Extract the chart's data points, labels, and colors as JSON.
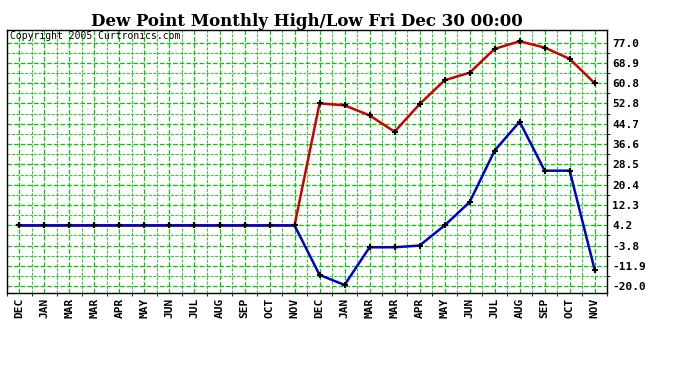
{
  "title": "Dew Point Monthly High/Low Fri Dec 30 00:00",
  "copyright": "Copyright 2005 Curtronics.com",
  "x_labels": [
    "DEC",
    "JAN",
    "MAR",
    "MAR",
    "APR",
    "MAY",
    "JUN",
    "JUL",
    "AUG",
    "SEP",
    "OCT",
    "NOV",
    "DEC",
    "JAN",
    "MAR",
    "MAR",
    "APR",
    "MAY",
    "JUN",
    "JUL",
    "AUG",
    "SEP",
    "OCT",
    "NOV"
  ],
  "y_ticks": [
    77.0,
    68.9,
    60.8,
    52.8,
    44.7,
    36.6,
    28.5,
    20.4,
    12.3,
    4.2,
    -3.8,
    -11.9,
    -20.0
  ],
  "high_values": [
    4.2,
    4.2,
    4.2,
    4.2,
    4.2,
    4.2,
    4.2,
    4.2,
    4.2,
    4.2,
    4.2,
    4.2,
    52.8,
    52.0,
    48.0,
    41.5,
    52.5,
    62.0,
    65.0,
    74.5,
    77.5,
    75.0,
    70.5,
    60.8
  ],
  "low_values": [
    4.2,
    4.2,
    4.2,
    4.2,
    4.2,
    4.2,
    4.2,
    4.2,
    4.2,
    4.2,
    4.2,
    4.2,
    -15.5,
    -19.5,
    -4.5,
    -4.5,
    -3.8,
    4.2,
    13.5,
    34.0,
    45.5,
    26.0,
    26.0,
    -13.5
  ],
  "bg_color": "#ffffff",
  "grid_color": "#00cc00",
  "high_color": "#cc0000",
  "low_color": "#0000cc",
  "title_color": "#000000",
  "border_color": "#000000",
  "title_fontsize": 12,
  "tick_fontsize": 8,
  "copyright_fontsize": 7,
  "line_width": 1.8,
  "marker_size": 4
}
